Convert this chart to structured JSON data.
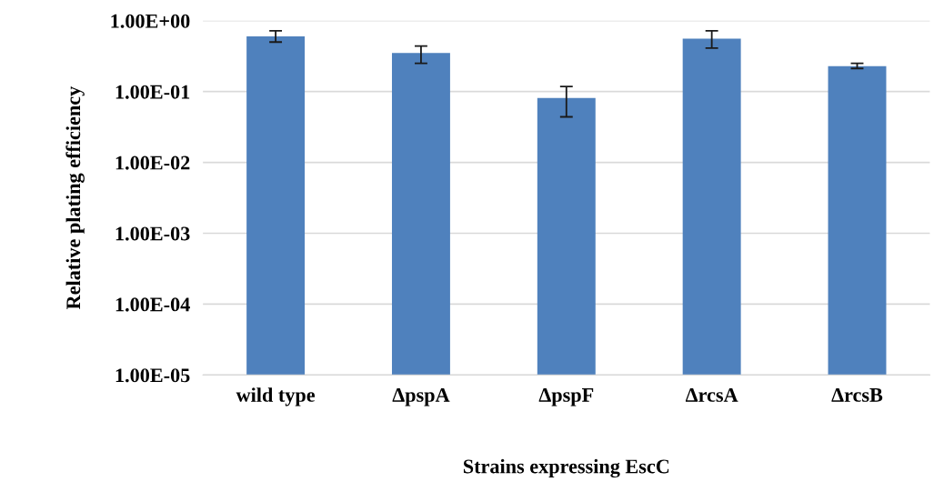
{
  "chart_data": {
    "type": "bar",
    "xlabel": "Strains expressing EscC",
    "ylabel": "Relative plating efficiency",
    "categories": [
      "wild type",
      "ΔpspA",
      "ΔpspF",
      "ΔrcsA",
      "ΔrcsB"
    ],
    "values": [
      0.6,
      0.35,
      0.081,
      0.56,
      0.229
    ],
    "errors": [
      [
        0.5,
        0.72
      ],
      [
        0.25,
        0.44
      ],
      [
        0.044,
        0.118
      ],
      [
        0.41,
        0.72
      ],
      [
        0.212,
        0.25
      ]
    ],
    "color": "#4f81bd",
    "log": true,
    "grid": "y",
    "legend": false,
    "ylim": [
      1e-05,
      1
    ],
    "yticks": [
      {
        "value": 1e-05,
        "label": "1.00E-05"
      },
      {
        "value": 0.0001,
        "label": "1.00E-04"
      },
      {
        "value": 0.001,
        "label": "1.00E-03"
      },
      {
        "value": 0.01,
        "label": "1.00E-02"
      },
      {
        "value": 0.1,
        "label": "1.00E-01"
      },
      {
        "value": 1,
        "label": "1.00E+00"
      }
    ]
  }
}
